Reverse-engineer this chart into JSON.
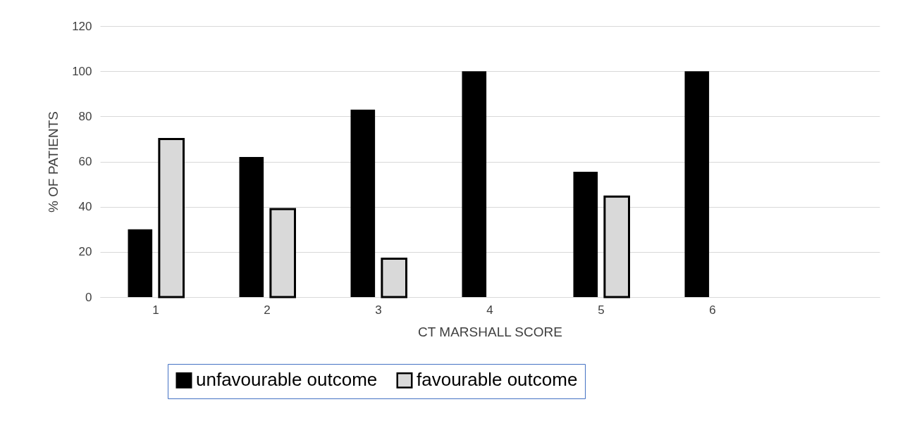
{
  "chart_data": {
    "type": "bar",
    "xlabel": "CT MARSHALL SCORE",
    "ylabel": "% OF PATIENTS",
    "categories": [
      "1",
      "2",
      "3",
      "4",
      "5",
      "6",
      null
    ],
    "series": [
      {
        "name": "unfavourable outcome",
        "color": "#000000",
        "values": [
          30,
          62,
          83,
          100,
          55.5,
          100,
          null
        ]
      },
      {
        "name": "favourable outcome",
        "color": "#d9d9d9",
        "values": [
          70,
          39,
          17,
          null,
          44.5,
          null,
          null
        ]
      }
    ],
    "ylim": [
      0,
      120
    ],
    "yticks": [
      0,
      20,
      40,
      60,
      80,
      100,
      120
    ],
    "grid": "y",
    "legend": "bottom"
  }
}
